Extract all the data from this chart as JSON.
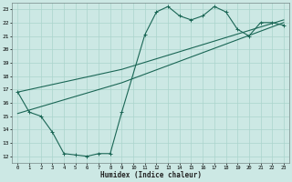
{
  "xlabel": "Humidex (Indice chaleur)",
  "bg_color": "#cce8e4",
  "grid_color": "#aad4cc",
  "line_color": "#1a6655",
  "xlim": [
    -0.5,
    23.5
  ],
  "ylim": [
    11.5,
    23.5
  ],
  "yticks": [
    12,
    13,
    14,
    15,
    16,
    17,
    18,
    19,
    20,
    21,
    22,
    23
  ],
  "xticks": [
    0,
    1,
    2,
    3,
    4,
    5,
    6,
    7,
    8,
    9,
    10,
    11,
    12,
    13,
    14,
    15,
    16,
    17,
    18,
    19,
    20,
    21,
    22,
    23
  ],
  "line1_x": [
    0,
    1,
    2,
    3,
    4,
    5,
    6,
    7,
    8,
    9,
    11,
    12,
    13,
    14,
    15,
    16,
    17,
    18,
    19,
    20,
    21,
    22,
    23
  ],
  "line1_y": [
    16.8,
    15.3,
    15.0,
    13.8,
    12.2,
    12.1,
    12.0,
    12.2,
    12.2,
    15.3,
    21.1,
    22.8,
    23.2,
    22.5,
    22.2,
    22.5,
    23.2,
    22.8,
    21.5,
    21.0,
    22.0,
    22.0,
    21.8
  ],
  "line2_x": [
    0,
    9,
    23
  ],
  "line2_y": [
    15.2,
    17.5,
    22.0
  ],
  "line3_x": [
    0,
    9,
    23
  ],
  "line3_y": [
    16.8,
    18.5,
    22.2
  ]
}
